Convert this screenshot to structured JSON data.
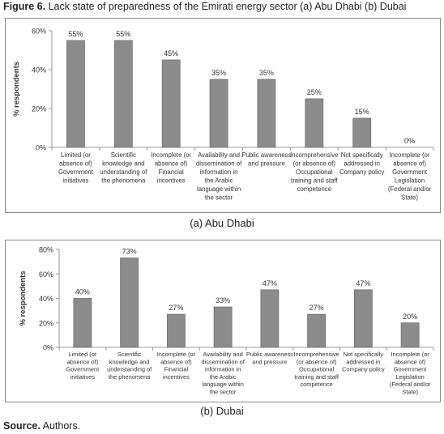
{
  "figure": {
    "title_bold": "Figure 6.",
    "title_rest": " Lack state of preparedness of the Emirati energy sector (a) Abu Dhabi (b) Dubai"
  },
  "source": {
    "label_bold": "Source.",
    "text": " Authors."
  },
  "colors": {
    "bar": "#8c8c8c",
    "bar_stroke": "#6e6e6e",
    "axis": "#999999",
    "border": "#8a8a8a"
  },
  "chart_data": [
    {
      "type": "bar",
      "caption": "(a) Abu Dhabi",
      "ylabel": "% respondents",
      "ylim": [
        0,
        60
      ],
      "yticks": [
        "0%",
        "20%",
        "40%",
        "60%"
      ],
      "ytick_values": [
        0,
        20,
        40,
        60
      ],
      "categories": [
        [
          "Limited (or",
          "absence of)",
          "Government",
          "initiatives"
        ],
        [
          "Scientific",
          "knowledge and",
          "understanding of",
          "the phenomena"
        ],
        [
          "Incomplete (or",
          "absence of)",
          "Financial",
          "incentives"
        ],
        [
          "Availability and",
          "dissemination of",
          "information in",
          "the Arabic",
          "language within",
          "the sector"
        ],
        [
          "Public awareness",
          "and pressure"
        ],
        [
          "Incomprehensive",
          "(or absence of)",
          "Occupational",
          "training and staff",
          "competence"
        ],
        [
          "Not specifically",
          "addressed in",
          "Company policy"
        ],
        [
          "Incomplete (or",
          "absence of)",
          "Government",
          "Legislation",
          "(Federal and/or",
          "State)"
        ]
      ],
      "values": [
        55,
        55,
        45,
        35,
        35,
        25,
        15,
        0
      ],
      "labels": [
        "55%",
        "55%",
        "45%",
        "35%",
        "35%",
        "25%",
        "15%",
        "0%"
      ]
    },
    {
      "type": "bar",
      "caption": "(b) Dubai",
      "ylabel": "% respondents",
      "ylim": [
        0,
        80
      ],
      "yticks": [
        "0%",
        "20%",
        "40%",
        "60%",
        "80%"
      ],
      "ytick_values": [
        0,
        20,
        40,
        60,
        80
      ],
      "categories": [
        [
          "Limited (or",
          "absence of)",
          "Government",
          "initiatives"
        ],
        [
          "Scientific",
          "knowledge and",
          "understanding of",
          "the phenomena"
        ],
        [
          "Incomplete (or",
          "absence of)",
          "Financial",
          "incentives"
        ],
        [
          "Availability and",
          "dissemination of",
          "information in",
          "the Arabic",
          "language within",
          "the sector"
        ],
        [
          "Public awareness",
          "and pressure"
        ],
        [
          "Incomprehensive",
          "(or absence of)",
          "Occupational",
          "training and staff",
          "competence"
        ],
        [
          "Not specifically",
          "addressed in",
          "Company policy"
        ],
        [
          "Incomplete (or",
          "absence of)",
          "Government",
          "Legislation",
          "(Federal and/or",
          "State)"
        ]
      ],
      "values": [
        40,
        73,
        27,
        33,
        47,
        27,
        47,
        20
      ],
      "labels": [
        "40%",
        "73%",
        "27%",
        "33%",
        "47%",
        "27%",
        "47%",
        "20%"
      ]
    }
  ]
}
